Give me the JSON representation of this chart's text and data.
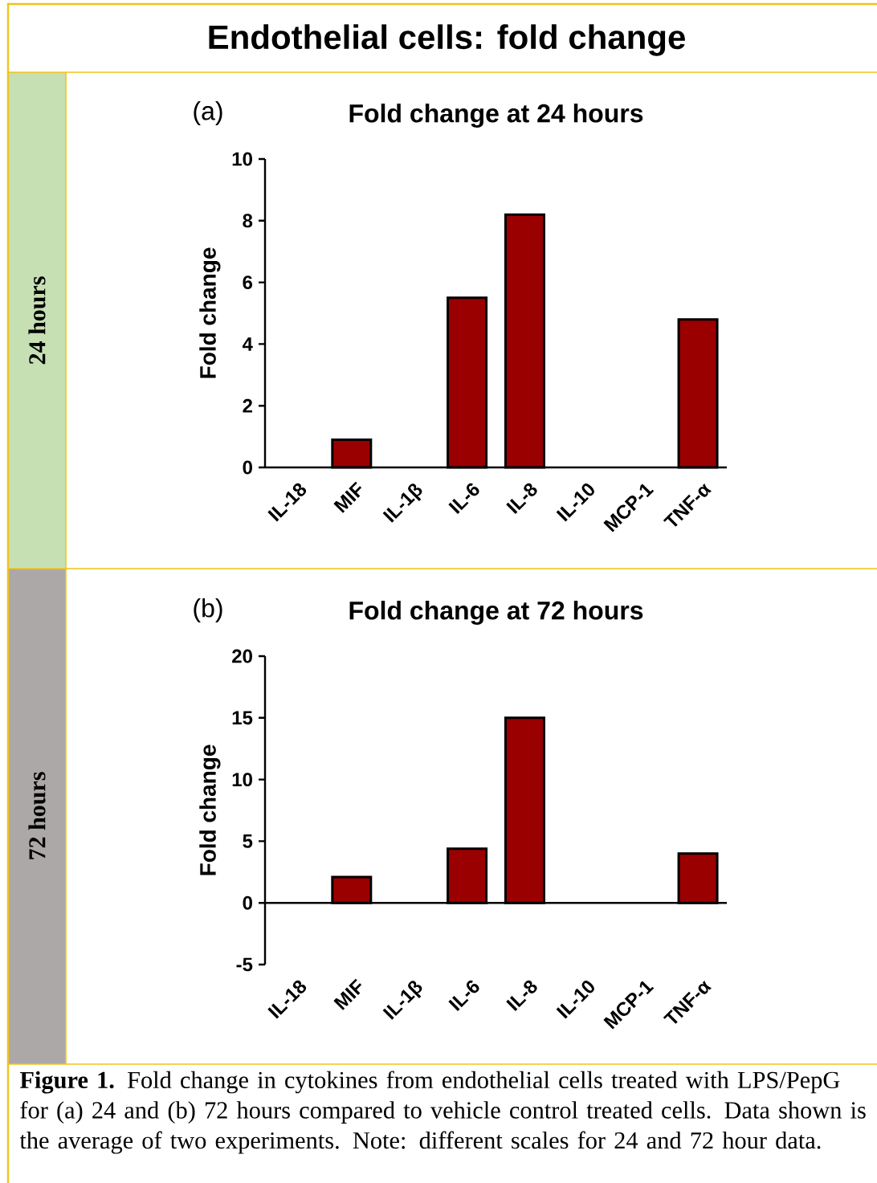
{
  "chart_data": [
    {
      "type": "bar",
      "title": "Fold change at 24 hours",
      "subtitle": "(a)",
      "ylabel": "Fold change",
      "categories": [
        "IL-18",
        "MIF",
        "IL-1β",
        "IL-6",
        "IL-8",
        "IL-10",
        "MCP-1",
        "TNF-α"
      ],
      "values": [
        null,
        0.9,
        null,
        5.5,
        8.2,
        null,
        null,
        4.8
      ],
      "color": "#9b0000",
      "ylim": [
        0,
        10
      ],
      "yticks": [
        0,
        2,
        4,
        6,
        8,
        10
      ],
      "annotations": [
        "Endothelial cells: fold change",
        "24 hours"
      ]
    },
    {
      "type": "bar",
      "title": "Fold change at 72 hours",
      "subtitle": "(b)",
      "ylabel": "Fold change",
      "categories": [
        "IL-18",
        "MIF",
        "IL-1β",
        "IL-6",
        "IL-8",
        "IL-10",
        "MCP-1",
        "TNF-α"
      ],
      "values": [
        null,
        2.1,
        null,
        4.4,
        15,
        null,
        null,
        4.0
      ],
      "color": "#9b0000",
      "ylim": [
        -5,
        20
      ],
      "yticks": [
        -5,
        0,
        5,
        10,
        15,
        20
      ],
      "annotations": [
        "72 hours",
        "**Figure 1.** Fold change in cytokines from endothelial cells treated with LPS/PepG for (a) 24 and (b) 72 hours compared to vehicle control treated cells. Data shown is the average of two experiments. Note: different scales for 24 and 72 hour data."
      ]
    }
  ]
}
